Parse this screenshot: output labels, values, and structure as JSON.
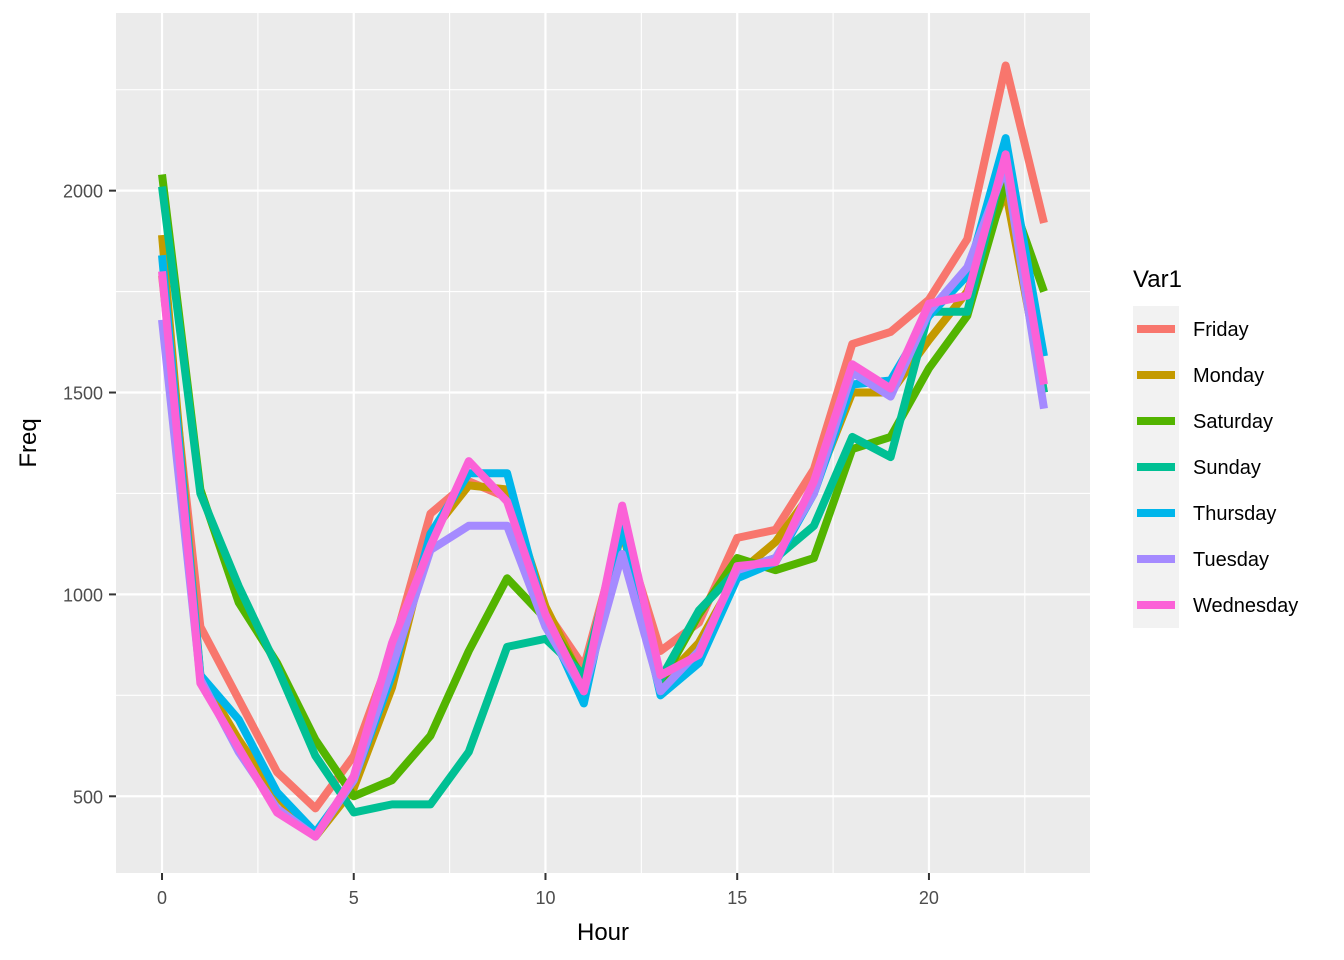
{
  "chart_data": {
    "type": "line",
    "xlabel": "Hour",
    "ylabel": "Freq",
    "xlim": [
      -1.2,
      24.2
    ],
    "ylim": [
      310,
      2440
    ],
    "x_ticks": [
      0,
      5,
      10,
      15,
      20
    ],
    "x_tick_labels": [
      "0",
      "5",
      "10",
      "15",
      "20"
    ],
    "y_ticks": [
      500,
      1000,
      1500,
      2000
    ],
    "y_tick_labels": [
      "500",
      "1000",
      "1500",
      "2000"
    ],
    "grid": true,
    "panel_background": "#ebebeb",
    "legend": {
      "title": "Var1",
      "position": "right"
    },
    "x": [
      0,
      1,
      2,
      3,
      4,
      5,
      6,
      7,
      8,
      9,
      10,
      11,
      12,
      13,
      14,
      15,
      16,
      17,
      18,
      19,
      20,
      21,
      22,
      23
    ],
    "series": [
      {
        "name": "Friday",
        "color": "#F8766D",
        "values": [
          1790,
          920,
          740,
          560,
          470,
          600,
          860,
          1200,
          1280,
          1240,
          960,
          820,
          1170,
          860,
          930,
          1140,
          1160,
          1310,
          1620,
          1650,
          1730,
          1880,
          2310,
          1920
        ]
      },
      {
        "name": "Monday",
        "color": "#C49A00",
        "values": [
          1890,
          800,
          640,
          500,
          400,
          520,
          770,
          1150,
          1270,
          1260,
          970,
          780,
          1160,
          780,
          880,
          1050,
          1130,
          1260,
          1500,
          1500,
          1630,
          1750,
          2000,
          1500
        ]
      },
      {
        "name": "Saturday",
        "color": "#53B400",
        "values": [
          2040,
          1260,
          980,
          830,
          640,
          500,
          540,
          650,
          860,
          1040,
          940,
          790,
          1170,
          780,
          950,
          1090,
          1060,
          1090,
          1360,
          1390,
          1560,
          1690,
          2020,
          1750
        ]
      },
      {
        "name": "Sunday",
        "color": "#00C094",
        "values": [
          2010,
          1250,
          1020,
          820,
          600,
          460,
          480,
          480,
          610,
          870,
          890,
          800,
          1170,
          790,
          960,
          1060,
          1090,
          1170,
          1390,
          1340,
          1700,
          1700,
          2090,
          1500
        ]
      },
      {
        "name": "Thursday",
        "color": "#00B6EB",
        "values": [
          1840,
          800,
          690,
          510,
          410,
          540,
          800,
          1150,
          1300,
          1300,
          940,
          730,
          1170,
          750,
          830,
          1040,
          1080,
          1250,
          1520,
          1530,
          1690,
          1790,
          2130,
          1590
        ]
      },
      {
        "name": "Tuesday",
        "color": "#A58AFF",
        "values": [
          1680,
          790,
          610,
          470,
          400,
          540,
          820,
          1110,
          1170,
          1170,
          920,
          760,
          1100,
          760,
          860,
          1060,
          1090,
          1250,
          1550,
          1490,
          1700,
          1810,
          2060,
          1460
        ]
      },
      {
        "name": "Wednesday",
        "color": "#FB61D7",
        "values": [
          1800,
          780,
          620,
          460,
          400,
          550,
          880,
          1120,
          1330,
          1230,
          950,
          760,
          1220,
          800,
          850,
          1070,
          1080,
          1280,
          1570,
          1510,
          1720,
          1740,
          2090,
          1520
        ]
      }
    ]
  }
}
